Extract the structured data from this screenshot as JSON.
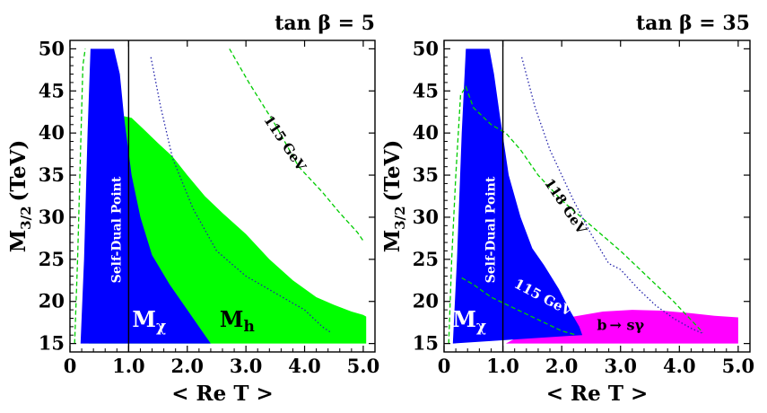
{
  "chart_data": [
    {
      "type": "area",
      "title": "tan β = 5",
      "xlabel": "< Re T >",
      "ylabel_main": "M",
      "ylabel_sub": "3/2",
      "ylabel_unit": "(TeV)",
      "xlim": [
        0,
        5.2
      ],
      "ylim": [
        14,
        51
      ],
      "xticks": [
        0.0,
        1.0,
        2.0,
        3.0,
        4.0,
        5.0
      ],
      "xtick_labels": [
        "0",
        "1.0",
        "2.0",
        "3.0",
        "4.0",
        "5.0"
      ],
      "yticks": [
        15,
        20,
        25,
        30,
        35,
        40,
        45,
        50
      ],
      "ytick_labels": [
        "15",
        "20",
        "25",
        "30",
        "35",
        "40",
        "45",
        "50"
      ],
      "self_dual_x": 1.0,
      "regions": [
        {
          "name": "M_h",
          "label_main": "M",
          "label_sub": "h",
          "color": "#00ff00",
          "label_at": [
            2.85,
            17
          ],
          "points": [
            [
              0.32,
              15
            ],
            [
              0.3,
              30
            ],
            [
              0.38,
              40.8
            ],
            [
              0.5,
              42.5
            ],
            [
              0.65,
              43.1
            ],
            [
              0.78,
              42.2
            ],
            [
              1.05,
              41.8
            ],
            [
              1.25,
              40.5
            ],
            [
              1.5,
              38.8
            ],
            [
              1.75,
              37.2
            ],
            [
              2.0,
              35.0
            ],
            [
              2.3,
              32.5
            ],
            [
              2.6,
              30.5
            ],
            [
              3.0,
              28.0
            ],
            [
              3.4,
              25.0
            ],
            [
              3.8,
              22.5
            ],
            [
              4.2,
              20.5
            ],
            [
              4.5,
              19.6
            ],
            [
              4.8,
              18.8
            ],
            [
              5.0,
              18.4
            ],
            [
              5.05,
              18.2
            ],
            [
              5.05,
              15
            ]
          ]
        },
        {
          "name": "M_chi",
          "label_main": "M",
          "label_sub": "χ",
          "color": "#0000ff",
          "label_at": [
            1.35,
            17
          ],
          "points": [
            [
              0.18,
              15
            ],
            [
              0.24,
              25
            ],
            [
              0.3,
              40
            ],
            [
              0.35,
              50
            ],
            [
              0.75,
              50
            ],
            [
              0.85,
              47
            ],
            [
              0.92,
              42
            ],
            [
              1.05,
              35
            ],
            [
              1.2,
              30
            ],
            [
              1.4,
              25.5
            ],
            [
              1.7,
              22
            ],
            [
              2.0,
              19
            ],
            [
              2.25,
              16.5
            ],
            [
              2.4,
              15
            ]
          ]
        }
      ],
      "series": [
        {
          "name": "green-dashed-left",
          "style": "dashed",
          "color": "#00cc00",
          "points": [
            [
              0.08,
              15
            ],
            [
              0.13,
              25
            ],
            [
              0.18,
              38
            ],
            [
              0.22,
              48
            ],
            [
              0.26,
              50
            ]
          ]
        },
        {
          "name": "blue-dotted",
          "style": "dotted",
          "color": "#2222aa",
          "points": [
            [
              1.38,
              49
            ],
            [
              1.55,
              43
            ],
            [
              1.75,
              37
            ],
            [
              2.1,
              31
            ],
            [
              2.5,
              26
            ],
            [
              3.0,
              23
            ],
            [
              3.5,
              21
            ],
            [
              4.0,
              19
            ],
            [
              4.3,
              17
            ],
            [
              4.45,
              16.3
            ]
          ]
        },
        {
          "name": "115 GeV",
          "style": "dashed",
          "color": "#00cc00",
          "label": "115 GeV",
          "label_at": [
            3.6,
            38.5
          ],
          "label_angle": 56,
          "points": [
            [
              2.72,
              50
            ],
            [
              3.05,
              46
            ],
            [
              3.5,
              41
            ],
            [
              3.9,
              36
            ],
            [
              4.3,
              33
            ],
            [
              4.6,
              30.5
            ],
            [
              4.9,
              28.2
            ],
            [
              5.0,
              27.2
            ]
          ]
        }
      ]
    },
    {
      "type": "area",
      "title": "tan β = 35",
      "xlabel": "< Re T >",
      "ylabel_main": "M",
      "ylabel_sub": "3/2",
      "ylabel_unit": "(TeV)",
      "xlim": [
        0,
        5.2
      ],
      "ylim": [
        14,
        51
      ],
      "xticks": [
        0.0,
        1.0,
        2.0,
        3.0,
        4.0,
        5.0
      ],
      "xtick_labels": [
        "0",
        "1.0",
        "2.0",
        "3.0",
        "4.0",
        "5.0"
      ],
      "yticks": [
        15,
        20,
        25,
        30,
        35,
        40,
        45,
        50
      ],
      "ytick_labels": [
        "15",
        "20",
        "25",
        "30",
        "35",
        "40",
        "45",
        "50"
      ],
      "self_dual_x": 1.0,
      "regions": [
        {
          "name": "b_to_s_gamma",
          "label_main": "b",
          "label_rest": "→  sγ",
          "color": "#ff00ff",
          "label_at": [
            3.0,
            16.6
          ],
          "points": [
            [
              1.05,
              15
            ],
            [
              1.4,
              16.3
            ],
            [
              1.8,
              17.4
            ],
            [
              2.2,
              18.2
            ],
            [
              2.7,
              18.8
            ],
            [
              3.2,
              19.0
            ],
            [
              3.7,
              18.9
            ],
            [
              4.2,
              18.6
            ],
            [
              4.6,
              18.3
            ],
            [
              5.0,
              18.1
            ],
            [
              5.0,
              15
            ]
          ]
        },
        {
          "name": "M_chi",
          "label_main": "M",
          "label_sub": "χ",
          "color": "#0000ff",
          "label_at": [
            0.43,
            17
          ],
          "points": [
            [
              0.15,
              15
            ],
            [
              0.22,
              25
            ],
            [
              0.3,
              40
            ],
            [
              0.37,
              50
            ],
            [
              0.77,
              50
            ],
            [
              0.85,
              47
            ],
            [
              0.95,
              42
            ],
            [
              1.1,
              35
            ],
            [
              1.3,
              30
            ],
            [
              1.5,
              26.3
            ],
            [
              1.7,
              24.3
            ],
            [
              1.95,
              21.5
            ],
            [
              2.15,
              18.8
            ],
            [
              2.3,
              17
            ],
            [
              2.35,
              16
            ]
          ]
        }
      ],
      "series": [
        {
          "name": "green-dashed-left",
          "style": "dashed",
          "color": "#00cc00",
          "points": [
            [
              0.08,
              15
            ],
            [
              0.13,
              25
            ],
            [
              0.2,
              35
            ],
            [
              0.28,
              44.5
            ],
            [
              0.37,
              45.5
            ],
            [
              0.5,
              43
            ],
            [
              0.8,
              41
            ],
            [
              1.05,
              40
            ],
            [
              1.3,
              38
            ],
            [
              1.6,
              35
            ],
            [
              2.0,
              32
            ],
            [
              2.5,
              29
            ],
            [
              3.0,
              26
            ],
            [
              3.3,
              24
            ],
            [
              3.6,
              22
            ],
            [
              3.9,
              20
            ],
            [
              4.2,
              17.8
            ],
            [
              4.4,
              16.3
            ]
          ]
        },
        {
          "name": "blue-dotted",
          "style": "dotted",
          "color": "#2222aa",
          "points": [
            [
              1.32,
              49
            ],
            [
              1.55,
              43
            ],
            [
              1.8,
              38
            ],
            [
              2.2,
              32
            ],
            [
              2.5,
              28
            ],
            [
              2.8,
              24.5
            ],
            [
              3.0,
              23.8
            ],
            [
              3.3,
              21.5
            ],
            [
              3.6,
              19.5
            ],
            [
              3.9,
              18
            ],
            [
              4.2,
              16.8
            ],
            [
              4.4,
              16.2
            ]
          ]
        },
        {
          "name": "115 GeV",
          "style": "dashed",
          "color": "#00cc00",
          "label": "115 GeV",
          "label_at": [
            1.65,
            20.0
          ],
          "label_angle": 28,
          "points": [
            [
              0.3,
              22.8
            ],
            [
              0.5,
              22.0
            ],
            [
              0.8,
              20.5
            ],
            [
              1.1,
              19.5
            ],
            [
              1.4,
              18.5
            ],
            [
              1.7,
              17.5
            ],
            [
              2.0,
              16.5
            ],
            [
              2.25,
              16.0
            ]
          ]
        }
      ],
      "curve_labels": [
        {
          "text": "118 GeV",
          "at": [
            2.0,
            31.0
          ],
          "angle": 56
        }
      ]
    }
  ]
}
